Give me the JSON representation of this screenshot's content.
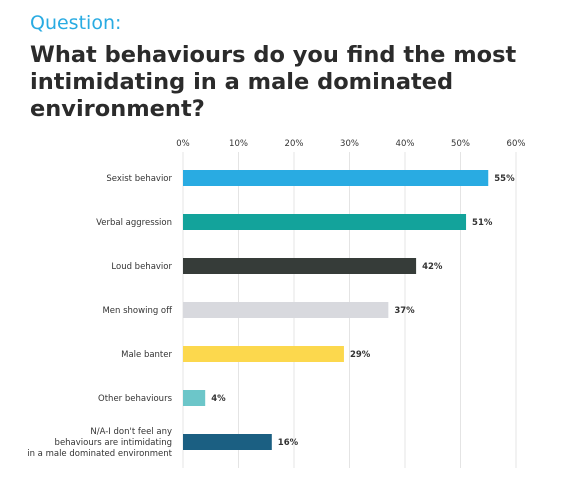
{
  "header": {
    "kicker": "Question:",
    "title": "What behaviours do you find the most intimidating in a male dominated environment?"
  },
  "chart_data": {
    "type": "bar",
    "orientation": "horizontal",
    "xlim": [
      0,
      60
    ],
    "ticks": [
      "0%",
      "10%",
      "20%",
      "30%",
      "40%",
      "50%",
      "60%"
    ],
    "tick_values": [
      0,
      10,
      20,
      30,
      40,
      50,
      60
    ],
    "grid": true,
    "categories": [
      [
        "Sexist behavior"
      ],
      [
        "Verbal aggression"
      ],
      [
        "Loud behavior"
      ],
      [
        "Men showing off"
      ],
      [
        "Male banter"
      ],
      [
        "Other behaviours"
      ],
      [
        "N/A-I don't feel any",
        "behaviours are intimidating",
        "in a male dominated environment"
      ]
    ],
    "values": [
      55,
      51,
      42,
      37,
      29,
      4,
      16
    ],
    "value_labels": [
      "55%",
      "51%",
      "42%",
      "37%",
      "29%",
      "4%",
      "16%"
    ],
    "colors": [
      "#29abe2",
      "#13a39b",
      "#363c39",
      "#d8d9de",
      "#fcd84d",
      "#6cc6c9",
      "#1b5f82"
    ]
  }
}
